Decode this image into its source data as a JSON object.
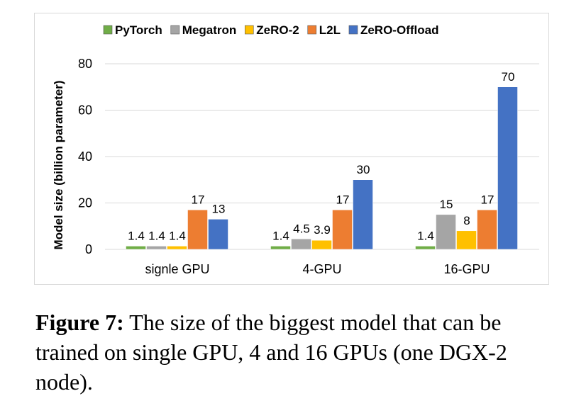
{
  "chart_data": {
    "type": "bar",
    "categories": [
      "signle GPU",
      "4-GPU",
      "16-GPU"
    ],
    "series": [
      {
        "name": "PyTorch",
        "color": "#70ad47",
        "values": [
          1.4,
          1.4,
          1.4
        ],
        "labels": [
          "1.4",
          "1.4",
          "1.4"
        ]
      },
      {
        "name": "Megatron",
        "color": "#a5a5a5",
        "values": [
          1.4,
          4.5,
          15
        ],
        "labels": [
          "1.4",
          "4.5",
          "15"
        ]
      },
      {
        "name": "ZeRO-2",
        "color": "#ffc000",
        "values": [
          1.4,
          3.9,
          8
        ],
        "labels": [
          "1.4",
          "3.9",
          "8"
        ]
      },
      {
        "name": "L2L",
        "color": "#ed7d31",
        "values": [
          17,
          17,
          17
        ],
        "labels": [
          "17",
          "17",
          "17"
        ]
      },
      {
        "name": "ZeRO-Offload",
        "color": "#4472c4",
        "values": [
          13,
          30,
          70
        ],
        "labels": [
          "13",
          "30",
          "70"
        ]
      }
    ],
    "title": "",
    "xlabel": "",
    "ylabel": "Model size (billion parameter)",
    "ylim": [
      0,
      80
    ],
    "yticks": [
      "0",
      "20",
      "40",
      "60",
      "80"
    ],
    "legend": "top"
  },
  "caption": {
    "label": "Figure 7:",
    "text": " The size of the biggest model that can be trained on single GPU, 4 and 16 GPUs (one DGX-2 node)."
  }
}
